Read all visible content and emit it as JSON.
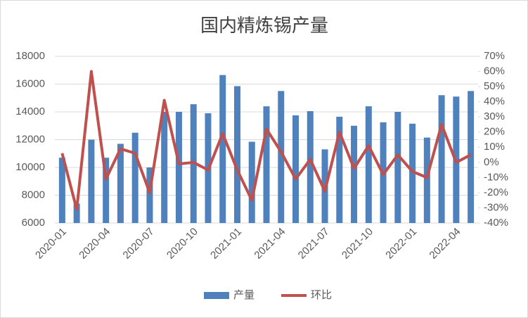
{
  "chart_data": {
    "type": "bar_line",
    "title": "国内精炼锡产量",
    "categories": [
      "2020-01",
      null,
      null,
      "2020-04",
      null,
      null,
      "2020-07",
      null,
      null,
      "2020-10",
      null,
      null,
      "2021-01",
      null,
      null,
      "2021-04",
      null,
      null,
      "2021-07",
      null,
      null,
      "2021-10",
      null,
      null,
      "2022-01",
      null,
      null,
      "2022-04",
      null
    ],
    "series": [
      {
        "name": "产量",
        "color": "#4f81bd",
        "type": "bar",
        "values": [
          10700,
          7400,
          12000,
          10700,
          11700,
          12500,
          10000,
          14000,
          14000,
          14550,
          13900,
          16650,
          15850,
          11850,
          14400,
          15500,
          13750,
          14050,
          11300,
          13650,
          13000,
          14400,
          13250,
          14000,
          13150,
          12150,
          15200,
          15100,
          15500
        ]
      },
      {
        "name": "环比",
        "color": "#c0504d",
        "type": "line",
        "axis": "y2",
        "values": [
          6,
          -31,
          60,
          -11,
          9,
          6,
          -20,
          41,
          -1,
          0,
          -5,
          19,
          -5,
          -25,
          22,
          7,
          -11,
          2,
          -19,
          20,
          -4,
          11,
          -8,
          5,
          -6,
          -10,
          25,
          0,
          5
        ]
      }
    ],
    "ylim": [
      6000,
      18000
    ],
    "yticks": [
      6000,
      8000,
      10000,
      12000,
      14000,
      16000,
      18000
    ],
    "y2lim": [
      -40,
      70
    ],
    "y2ticks": [
      {
        "value": -40,
        "label": "-40%"
      },
      {
        "value": -30,
        "label": "-30%"
      },
      {
        "value": -20,
        "label": "-20%"
      },
      {
        "value": -10,
        "label": "-10%"
      },
      {
        "value": 0,
        "label": "0%"
      },
      {
        "value": 10,
        "label": "10%"
      },
      {
        "value": 20,
        "label": "20%"
      },
      {
        "value": 30,
        "label": "30%"
      },
      {
        "value": 40,
        "label": "40%"
      },
      {
        "value": 50,
        "label": "50%"
      },
      {
        "value": 60,
        "label": "60%"
      },
      {
        "value": 70,
        "label": "70%"
      }
    ],
    "grid": true,
    "legend": "bottom"
  }
}
